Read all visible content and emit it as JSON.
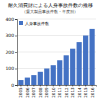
{
  "chart_data": {
    "type": "bar",
    "title": "耐久消費財による人身事故件数の推移",
    "subtitle": "（重大製品事故件数・年度別）",
    "categories": [
      "2005",
      "2006",
      "2007",
      "2008",
      "2009",
      "2010",
      "2011",
      "2012",
      "2013",
      "2014",
      "2015",
      "2016"
    ],
    "series": [
      {
        "name": "人身事故件数",
        "color": "#4472c4",
        "values": [
          30,
          45,
          60,
          80,
          100,
          120,
          150,
          180,
          220,
          260,
          300,
          340
        ]
      }
    ],
    "ylim": [
      0,
      400
    ],
    "yticks": [
      0,
      100,
      200,
      300,
      400
    ],
    "grid": true,
    "legend": "top-left"
  }
}
